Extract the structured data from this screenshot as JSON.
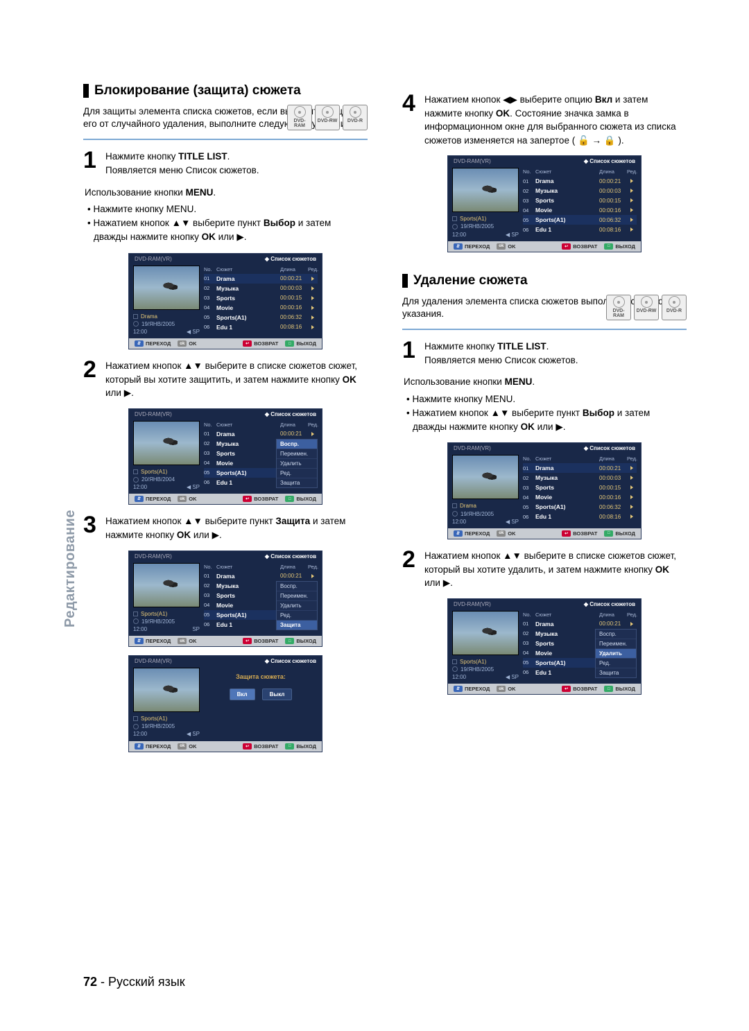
{
  "sidebar_tab": "Редактирование",
  "footer": {
    "page": "72",
    "sep": " - ",
    "lang": "Русский язык"
  },
  "left": {
    "h1": "Блокирование (защита) сюжета",
    "intro": "Для защиты элемента списка сюжетов, если вы хотите защитить его от случайного удаления, выполните следующие указания.",
    "discs": [
      "DVD-RAM",
      "DVD-RW",
      "DVD-R"
    ],
    "steps": {
      "1": {
        "line": "Нажмите кнопку <b>TITLE LIST</b>.<br>Появляется меню Список сюжетов.",
        "sub_label": "Использование кнопки <b>MENU</b>.",
        "bullets": [
          "• Нажмите кнопку MENU.",
          "• Нажатием кнопок ▲▼ выберите пункт <b>Выбор</b> и затем дважды нажмите кнопку <b>OK</b> или ▶."
        ]
      },
      "2": {
        "line": "Нажатием кнопок ▲▼ выберите в списке сюжетов сюжет, который вы хотите защитить, и затем нажмите кнопку <b>OK</b> или ▶."
      },
      "3": {
        "line": "Нажатием кнопок ▲▼ выберите пункт <b>Защита</b> и затем нажмите кнопку <b>OK</b> или ▶."
      }
    }
  },
  "right": {
    "step4": {
      "line": "Нажатием кнопок ◀▶ выберите опцию <b>Вкл</b> и затем нажмите кнопку <b>OK</b>. Состояние значка замка в информационном окне для выбранного сюжета из списка сюжетов изменяется на запертое ( 🔓 → 🔒 )."
    },
    "h2": "Удаление сюжета",
    "intro2": "Для удаления элемента списка сюжетов выполните следующие указания.",
    "discs": [
      "DVD-RAM",
      "DVD-RW",
      "DVD-R"
    ],
    "steps": {
      "1": {
        "line": "Нажмите кнопку <b>TITLE LIST</b>.<br>Появляется меню Список сюжетов.",
        "sub_label": "Использование кнопки <b>MENU</b>.",
        "bullets": [
          "• Нажмите кнопку MENU.",
          "• Нажатием кнопок ▲▼ выберите пункт <b>Выбор</b> и затем дважды нажмите кнопку <b>OK</b> или ▶."
        ]
      },
      "2": {
        "line": "Нажатием кнопок ▲▼ выберите в списке сюжетов сюжет, который вы хотите удалить, и затем нажмите кнопку <b>OK</b> или ▶."
      }
    }
  },
  "osd": {
    "device": "DVD-RAM(VR)",
    "list_title": "Список сюжетов",
    "th": {
      "no": "No.",
      "title": "Сюжет",
      "len": "Длина",
      "ed": "Ред."
    },
    "rows": [
      {
        "no": "01",
        "title": "Drama",
        "len": "00:00:21"
      },
      {
        "no": "02",
        "title": "Музыка",
        "len": "00:00:03"
      },
      {
        "no": "03",
        "title": "Sports",
        "len": "00:00:15"
      },
      {
        "no": "04",
        "title": "Movie",
        "len": "00:00:16"
      },
      {
        "no": "05",
        "title": "Sports(A1)",
        "len": "00:06:32"
      },
      {
        "no": "06",
        "title": "Edu 1",
        "len": "00:08:16"
      }
    ],
    "meta1": {
      "t": "Drama",
      "d": "19/ЯНВ/2005",
      "time": "12:00",
      "sp": "SP"
    },
    "meta2": {
      "t": "Sports(A1)",
      "d": "20/ЯНВ/2004",
      "time": "12:00",
      "sp": "SP"
    },
    "meta3": {
      "t": "Sports(A1)",
      "d": "19/ЯНВ/2005",
      "time": "12:00",
      "sp": "SP"
    },
    "ctx": [
      "Воспр.",
      "Переимен.",
      "Удалить",
      "Ред.",
      "Защита"
    ],
    "ctx_hi_protect": 4,
    "ctx_hi_delete": 2,
    "protect_dialog": {
      "caption": "Защита сюжета:",
      "on": "Вкл",
      "off": "Выкл"
    },
    "foot": {
      "move": "ПЕРЕХОД",
      "ok": "OK",
      "back": "ВОЗВРАТ",
      "exit": "ВЫХОД"
    }
  },
  "colors": {
    "rule": "#7da9d4",
    "osd_bg": "#192848",
    "osd_foot": "#c8ccd2",
    "amber": "#e6c878",
    "side": "#8e9aa8"
  }
}
